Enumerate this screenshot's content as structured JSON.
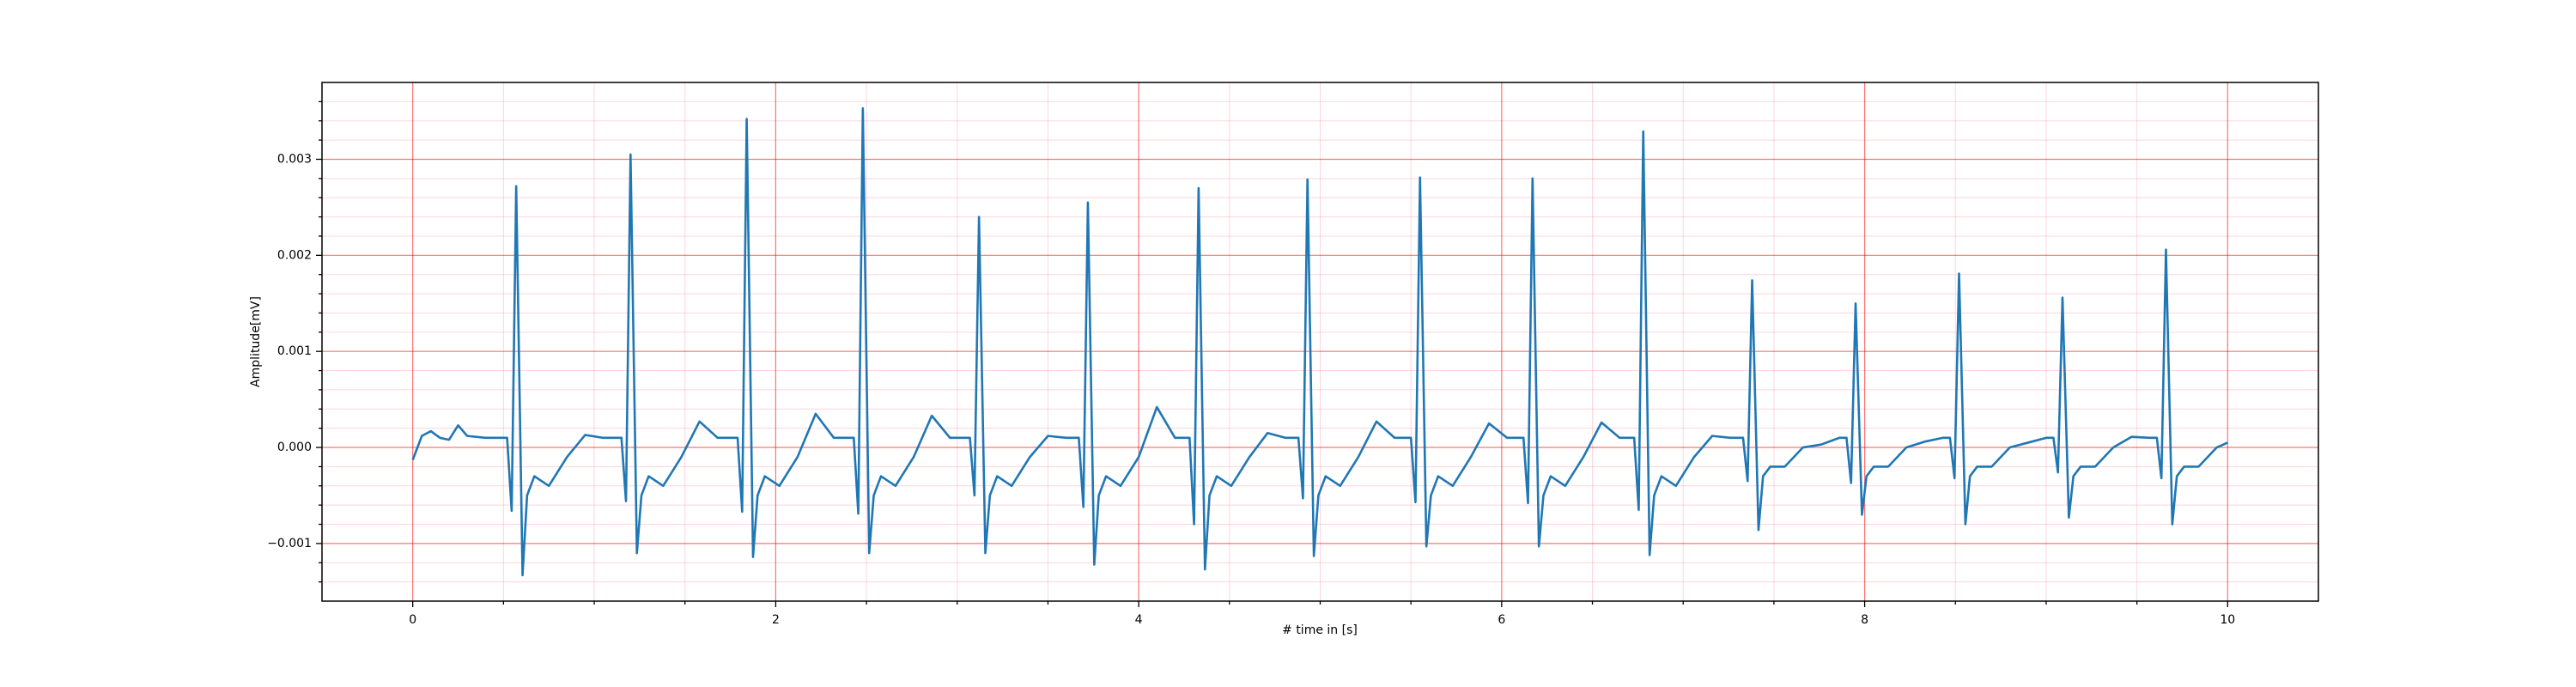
{
  "chart_data": {
    "type": "line",
    "xlabel": "# time in [s]",
    "ylabel": "Amplitude[mV]",
    "color": "#1f77b4",
    "xlim": [
      -0.5,
      10.5
    ],
    "ylim": [
      -0.0016,
      0.0038
    ],
    "xticks": [
      0,
      2,
      4,
      6,
      8,
      10
    ],
    "yticks": [
      {
        "value": -0.001,
        "label": "−0.001"
      },
      {
        "value": 0,
        "label": "0.000"
      },
      {
        "value": 0.001,
        "label": "0.001"
      },
      {
        "value": 0.002,
        "label": "0.002"
      },
      {
        "value": 0.003,
        "label": "0.003"
      }
    ],
    "xminorticks": [
      0.5,
      1,
      1.5,
      2.5,
      3,
      3.5,
      4.5,
      5,
      5.5,
      6.5,
      7,
      7.5,
      8.5,
      9,
      9.5
    ],
    "yminorticks": [
      -0.0014,
      -0.0012,
      -0.0008,
      -0.0006,
      -0.0004,
      -0.0002,
      0.0002,
      0.0004,
      0.0006,
      0.0008,
      0.0012,
      0.0014,
      0.0016,
      0.0018,
      0.0022,
      0.0024,
      0.0026,
      0.0028,
      0.0032,
      0.0034,
      0.0036
    ],
    "grid": true,
    "minor_grid": true,
    "x": [
      0,
      0.05,
      0.1,
      0.15,
      0.2,
      0.25,
      0.3,
      0.4,
      0.52,
      0.545,
      0.57,
      0.605,
      0.63,
      0.67,
      0.75,
      0.85,
      0.95,
      1.05,
      1.15,
      1.175,
      1.2,
      1.235,
      1.26,
      1.3,
      1.38,
      1.48,
      1.58,
      1.68,
      1.79,
      1.815,
      1.84,
      1.875,
      1.9,
      1.94,
      2.02,
      2.12,
      2.22,
      2.32,
      2.43,
      2.455,
      2.48,
      2.515,
      2.54,
      2.58,
      2.66,
      2.76,
      2.86,
      2.96,
      3.07,
      3.095,
      3.12,
      3.155,
      3.18,
      3.22,
      3.3,
      3.4,
      3.5,
      3.6,
      3.67,
      3.695,
      3.72,
      3.755,
      3.78,
      3.82,
      3.9,
      4.0,
      4.1,
      4.2,
      4.28,
      4.305,
      4.33,
      4.365,
      4.39,
      4.43,
      4.51,
      4.61,
      4.71,
      4.81,
      4.88,
      4.905,
      4.93,
      4.965,
      4.99,
      5.03,
      5.11,
      5.21,
      5.31,
      5.41,
      5.5,
      5.525,
      5.55,
      5.585,
      5.61,
      5.65,
      5.73,
      5.83,
      5.93,
      6.03,
      6.12,
      6.145,
      6.17,
      6.205,
      6.23,
      6.27,
      6.35,
      6.45,
      6.55,
      6.65,
      6.73,
      6.755,
      6.78,
      6.815,
      6.84,
      6.88,
      6.96,
      7.06,
      7.16,
      7.26,
      7.33,
      7.355,
      7.38,
      7.415,
      7.44,
      7.48,
      7.56,
      7.66,
      7.76,
      7.86,
      7.9,
      7.925,
      7.95,
      7.985,
      8.01,
      8.05,
      8.13,
      8.23,
      8.33,
      8.43,
      8.47,
      8.495,
      8.52,
      8.555,
      8.58,
      8.62,
      8.7,
      8.8,
      8.9,
      9.0,
      9.04,
      9.065,
      9.09,
      9.125,
      9.15,
      9.19,
      9.27,
      9.37,
      9.47,
      9.57,
      9.61,
      9.635,
      9.66,
      9.695,
      9.72,
      9.76,
      9.84,
      9.94,
      10.0
    ],
    "values": [
      -0.00013,
      0.00012,
      0.00017,
      0.0001,
      8e-05,
      0.00023,
      0.00012,
      0.0001,
      0.0001,
      -0.00066,
      0.00272,
      -0.00133,
      -0.0005,
      -0.0003,
      -0.0004,
      -0.0001,
      0.00013,
      0.0001,
      0.0001,
      -0.00056,
      0.00305,
      -0.0011,
      -0.0005,
      -0.0003,
      -0.0004,
      -0.0001,
      0.00027,
      0.0001,
      0.0001,
      -0.00067,
      0.00342,
      -0.00114,
      -0.0005,
      -0.0003,
      -0.0004,
      -0.0001,
      0.00035,
      0.0001,
      0.0001,
      -0.00069,
      0.00353,
      -0.0011,
      -0.0005,
      -0.0003,
      -0.0004,
      -0.0001,
      0.00033,
      0.0001,
      0.0001,
      -0.0005,
      0.0024,
      -0.0011,
      -0.0005,
      -0.0003,
      -0.0004,
      -0.0001,
      0.00012,
      0.0001,
      0.0001,
      -0.00062,
      0.00255,
      -0.00122,
      -0.0005,
      -0.0003,
      -0.0004,
      -0.0001,
      0.00042,
      0.0001,
      0.0001,
      -0.0008,
      0.0027,
      -0.00127,
      -0.0005,
      -0.0003,
      -0.0004,
      -0.0001,
      0.00015,
      0.0001,
      0.0001,
      -0.00053,
      0.00279,
      -0.00113,
      -0.0005,
      -0.0003,
      -0.0004,
      -0.0001,
      0.00027,
      0.0001,
      0.0001,
      -0.00057,
      0.00281,
      -0.00103,
      -0.0005,
      -0.0003,
      -0.0004,
      -0.0001,
      0.00025,
      0.0001,
      0.0001,
      -0.00058,
      0.0028,
      -0.00103,
      -0.0005,
      -0.0003,
      -0.0004,
      -0.0001,
      0.00026,
      0.0001,
      0.0001,
      -0.00065,
      0.00329,
      -0.00112,
      -0.0005,
      -0.0003,
      -0.0004,
      -0.0001,
      0.00012,
      0.0001,
      0.0001,
      -0.00035,
      0.00174,
      -0.00086,
      -0.0003,
      -0.0002,
      -0.0002,
      0,
      3e-05,
      0.0001,
      0.0001,
      -0.00037,
      0.0015,
      -0.0007,
      -0.0003,
      -0.0002,
      -0.0002,
      0,
      6e-05,
      0.0001,
      0.0001,
      -0.00032,
      0.00181,
      -0.0008,
      -0.0003,
      -0.0002,
      -0.0002,
      0,
      5e-05,
      0.0001,
      0.0001,
      -0.00026,
      0.00156,
      -0.00073,
      -0.0003,
      -0.0002,
      -0.0002,
      0,
      0.00011,
      0.0001,
      0.0001,
      -0.00032,
      0.00206,
      -0.0008,
      -0.0003,
      -0.0002,
      -0.0002,
      0,
      5e-05
    ]
  }
}
